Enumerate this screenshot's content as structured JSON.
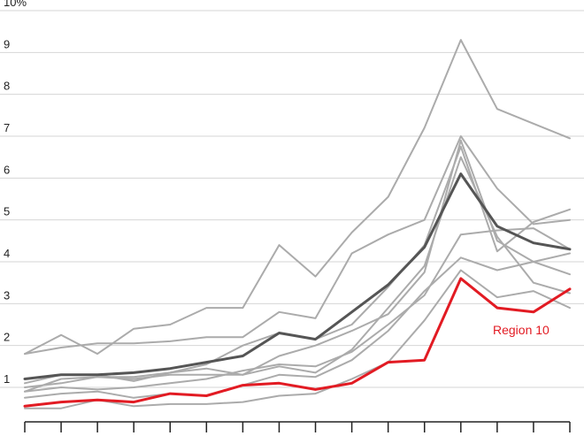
{
  "chart_data": {
    "type": "line",
    "y_tick_labels": [
      "10%",
      "9",
      "8",
      "7",
      "6",
      "5",
      "4",
      "3",
      "2",
      "1"
    ],
    "y_ticks": [
      10,
      9,
      8,
      7,
      6,
      5,
      4,
      3,
      2,
      1
    ],
    "ylim": [
      0.3,
      10
    ],
    "x_count": 16,
    "grid": true,
    "annotation": {
      "text": "Region 10",
      "color": "#e21b23"
    },
    "series": [
      {
        "role": "other",
        "color": "#ababab",
        "values": [
          1.8,
          2.25,
          1.8,
          2.4,
          2.5,
          2.9,
          2.9,
          4.4,
          3.65,
          4.7,
          5.55,
          7.2,
          9.3,
          7.65,
          7.3,
          6.95
        ]
      },
      {
        "role": "other",
        "color": "#ababab",
        "values": [
          1.8,
          1.95,
          2.05,
          2.05,
          2.1,
          2.2,
          2.2,
          2.8,
          2.65,
          4.2,
          4.65,
          5.0,
          7.0,
          5.75,
          4.9,
          5.0
        ]
      },
      {
        "role": "other",
        "color": "#ababab",
        "values": [
          0.9,
          1.2,
          1.25,
          1.25,
          1.35,
          1.55,
          2.0,
          2.3,
          2.15,
          2.5,
          3.4,
          4.4,
          6.75,
          4.25,
          4.95,
          5.25
        ]
      },
      {
        "role": "other",
        "color": "#ababab",
        "values": [
          1.0,
          1.1,
          1.25,
          1.2,
          1.3,
          1.3,
          1.3,
          1.5,
          1.35,
          1.9,
          2.9,
          3.9,
          6.5,
          4.6,
          3.5,
          3.25
        ]
      },
      {
        "role": "other",
        "color": "#ababab",
        "values": [
          1.1,
          1.3,
          1.3,
          1.15,
          1.35,
          1.45,
          1.3,
          1.75,
          2.0,
          2.35,
          2.75,
          3.75,
          6.9,
          4.5,
          4.0,
          3.7
        ]
      },
      {
        "role": "other",
        "color": "#ababab",
        "values": [
          0.9,
          1.0,
          0.95,
          1.0,
          1.1,
          1.2,
          1.4,
          1.55,
          1.5,
          1.85,
          2.5,
          3.2,
          4.65,
          4.75,
          4.8,
          4.3
        ]
      },
      {
        "role": "other",
        "color": "#ababab",
        "values": [
          0.75,
          0.85,
          0.9,
          0.75,
          0.85,
          0.8,
          1.05,
          1.3,
          1.25,
          1.65,
          2.35,
          3.3,
          4.1,
          3.8,
          4.0,
          4.2
        ]
      },
      {
        "role": "other",
        "color": "#ababab",
        "values": [
          0.5,
          0.5,
          0.7,
          0.55,
          0.6,
          0.6,
          0.65,
          0.8,
          0.85,
          1.2,
          1.6,
          2.6,
          3.8,
          3.15,
          3.3,
          2.9
        ]
      },
      {
        "role": "average",
        "color": "#555555",
        "values": [
          1.2,
          1.3,
          1.3,
          1.35,
          1.45,
          1.6,
          1.75,
          2.3,
          2.15,
          2.8,
          3.45,
          4.35,
          6.1,
          4.85,
          4.45,
          4.3
        ]
      },
      {
        "role": "highlight",
        "name": "Region 10",
        "color": "#e21b23",
        "values": [
          0.55,
          0.65,
          0.7,
          0.65,
          0.85,
          0.8,
          1.05,
          1.1,
          0.95,
          1.1,
          1.6,
          1.65,
          3.6,
          2.9,
          2.8,
          3.35
        ]
      }
    ]
  }
}
